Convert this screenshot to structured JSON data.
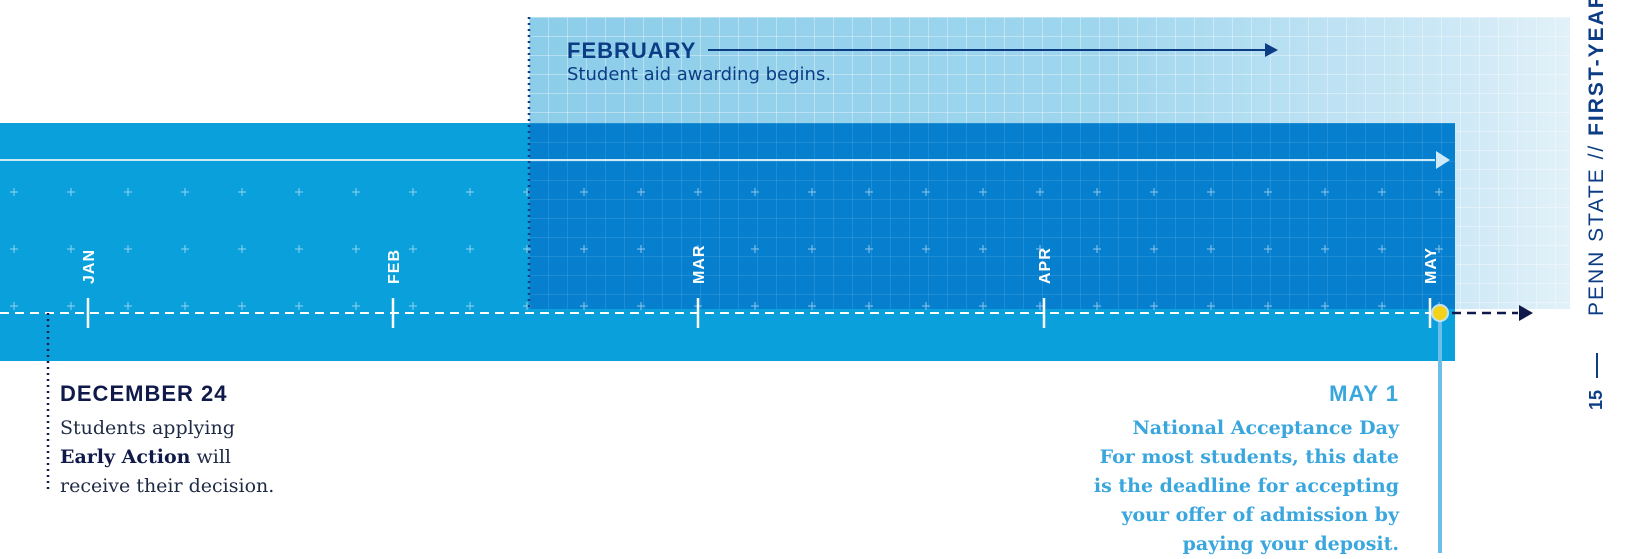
{
  "february": {
    "heading": "FEBRUARY",
    "body": "Student aid awarding begins."
  },
  "months": [
    "JAN",
    "FEB",
    "MAR",
    "APR",
    "MAY"
  ],
  "december": {
    "heading": "DECEMBER 24",
    "body_prefix": "Students applying",
    "body_bold": "Early Action",
    "body_mid": "will",
    "body_suffix": "receive their decision."
  },
  "may": {
    "heading": "MAY 1",
    "lines": [
      "National Acceptance Day",
      "For most students, this date",
      "is the deadline for accepting",
      "your offer of admission by",
      "paying your deposit."
    ]
  },
  "sidebar": {
    "title_light": "PENN STATE //",
    "title_bold": "FIRST-YEAR",
    "page_number": "15"
  },
  "colors": {
    "light_band": "#8ccde9",
    "main_band": "#0aa0dc",
    "dark_band": "#0680ce",
    "navy": "#0b3c84",
    "accent_yellow": "#f5d21a",
    "may_blue": "#3aa6de"
  }
}
